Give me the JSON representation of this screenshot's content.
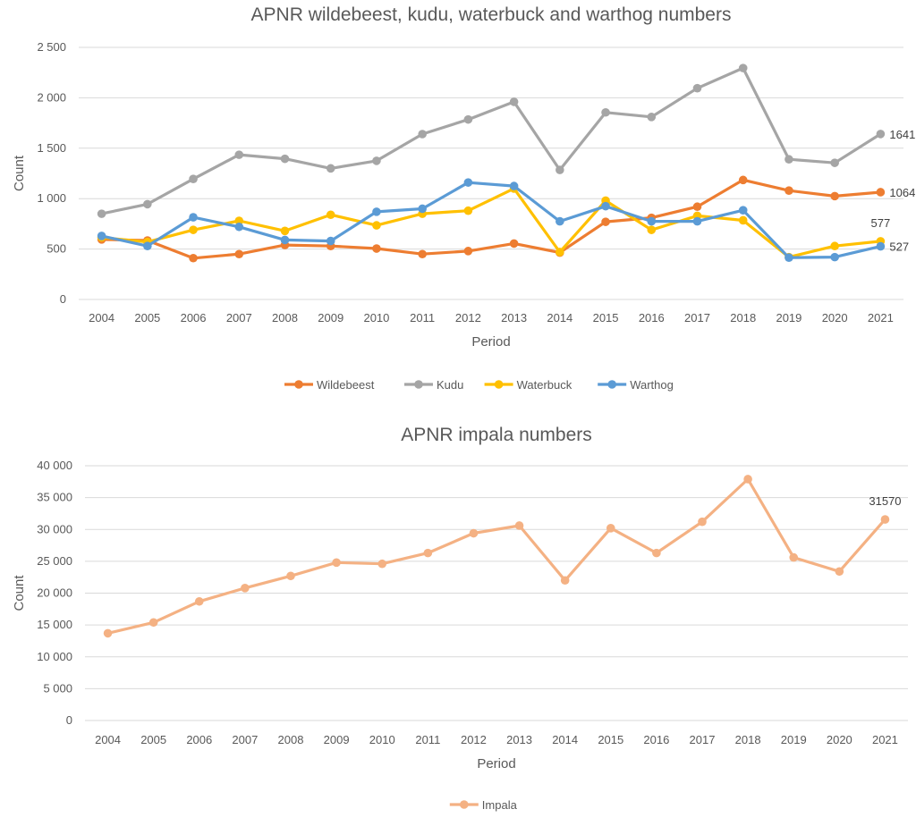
{
  "chart_data": [
    {
      "type": "line",
      "title": "APNR wildebeest, kudu, waterbuck and warthog numbers",
      "xlabel": "Period",
      "ylabel": "Count",
      "ylim": [
        0,
        2500
      ],
      "y_ticks": [
        "0",
        "500",
        "1 000",
        "1 500",
        "2 000",
        "2 500"
      ],
      "y_tick_values": [
        0,
        500,
        1000,
        1500,
        2000,
        2500
      ],
      "categories": [
        "2004",
        "2005",
        "2006",
        "2007",
        "2008",
        "2009",
        "2010",
        "2011",
        "2012",
        "2013",
        "2014",
        "2015",
        "2016",
        "2017",
        "2018",
        "2019",
        "2020",
        "2021"
      ],
      "grid": true,
      "legend_position": "bottom",
      "series": [
        {
          "name": "Wildebeest",
          "color": "#ED7D31",
          "values": [
            595,
            585,
            410,
            450,
            540,
            530,
            505,
            450,
            480,
            555,
            465,
            770,
            810,
            920,
            1185,
            1080,
            1025,
            1064
          ]
        },
        {
          "name": "Kudu",
          "color": "#A5A5A5",
          "values": [
            850,
            945,
            1195,
            1435,
            1395,
            1300,
            1375,
            1640,
            1785,
            1960,
            1285,
            1855,
            1810,
            2095,
            2295,
            1390,
            1355,
            1641
          ]
        },
        {
          "name": "Waterbuck",
          "color": "#FFC000",
          "values": [
            615,
            570,
            690,
            780,
            680,
            840,
            735,
            850,
            880,
            1100,
            470,
            980,
            690,
            830,
            785,
            420,
            530,
            577
          ]
        },
        {
          "name": "Warthog",
          "color": "#5B9BD5",
          "values": [
            630,
            530,
            815,
            720,
            590,
            580,
            870,
            900,
            1160,
            1125,
            775,
            925,
            775,
            775,
            885,
            415,
            420,
            527
          ]
        }
      ],
      "data_labels": [
        {
          "series": "Kudu",
          "index": 17,
          "text": "1641",
          "position": "right"
        },
        {
          "series": "Wildebeest",
          "index": 17,
          "text": "1064",
          "position": "right"
        },
        {
          "series": "Waterbuck",
          "index": 17,
          "text": "577",
          "position": "above"
        },
        {
          "series": "Warthog",
          "index": 17,
          "text": "527",
          "position": "right"
        }
      ]
    },
    {
      "type": "line",
      "title": "APNR impala numbers",
      "xlabel": "Period",
      "ylabel": "Count",
      "ylim": [
        0,
        40000
      ],
      "y_ticks": [
        "0",
        "5 000",
        "10 000",
        "15 000",
        "20 000",
        "25 000",
        "30 000",
        "35 000",
        "40 000"
      ],
      "y_tick_values": [
        0,
        5000,
        10000,
        15000,
        20000,
        25000,
        30000,
        35000,
        40000
      ],
      "categories": [
        "2004",
        "2005",
        "2006",
        "2007",
        "2008",
        "2009",
        "2010",
        "2011",
        "2012",
        "2013",
        "2014",
        "2015",
        "2016",
        "2017",
        "2018",
        "2019",
        "2020",
        "2021"
      ],
      "grid": true,
      "legend_position": "bottom",
      "series": [
        {
          "name": "Impala",
          "color": "#F4B183",
          "values": [
            13700,
            15400,
            18700,
            20800,
            22700,
            24800,
            24600,
            26300,
            29400,
            30600,
            22000,
            30200,
            26300,
            31200,
            37900,
            25600,
            23400,
            31570
          ]
        }
      ],
      "data_labels": [
        {
          "series": "Impala",
          "index": 17,
          "text": "31570",
          "position": "above"
        }
      ]
    }
  ]
}
